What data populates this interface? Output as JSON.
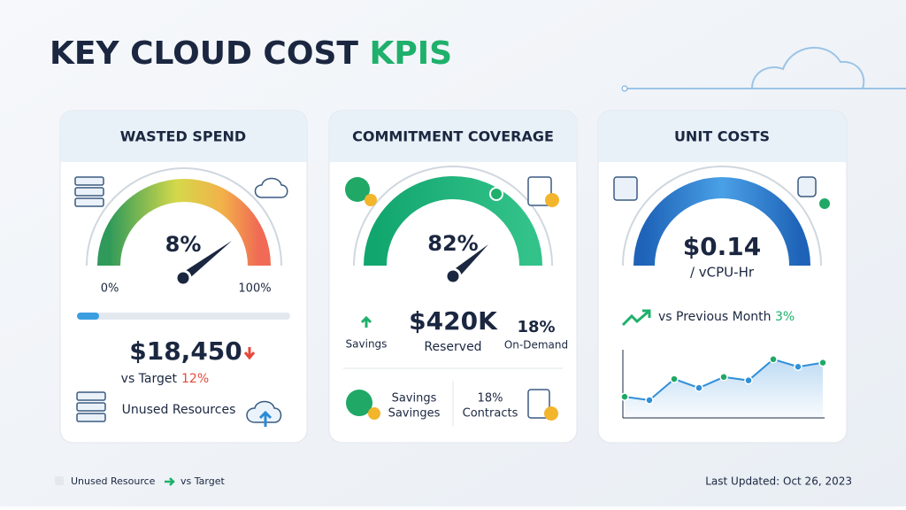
{
  "header": {
    "title": "KEY CLOUD COST",
    "title_highlight": "KPIS"
  },
  "cards": [
    {
      "title": "WASTED SPEND",
      "gauge_value": "8%",
      "gauge_min": "0%",
      "gauge_max": "100%",
      "amount": "$18,450",
      "target_label": "vs Target",
      "target_value": "12%",
      "footer_label": "Unused Resources"
    },
    {
      "title": "COMMITMENT COVERAGE",
      "gauge_value": "82%",
      "left_label": "Savings",
      "amount": "$420K",
      "amount_label": "Reserved",
      "right_value": "18%",
      "right_label": "On-Demand",
      "footer_left_1": "Savings",
      "footer_left_2": "Savinges",
      "footer_right_1": "18%",
      "footer_right_2": "Contracts"
    },
    {
      "title": "UNIT COSTS",
      "amount": "$0.14",
      "unit": "/ vCPU-Hr",
      "trend_label": "vs Previous Month",
      "trend_value": "3%",
      "sparkline": {
        "values": [
          3.1,
          2.6,
          5.7,
          4.4,
          6.0,
          5.5,
          8.6,
          7.5,
          8.1
        ],
        "ylim": [
          0,
          10
        ]
      }
    }
  ],
  "legend": {
    "item_1": "Unused Resource",
    "item_2": "vs Target"
  },
  "updated": "Last Updated: Oct 26, 2023"
}
